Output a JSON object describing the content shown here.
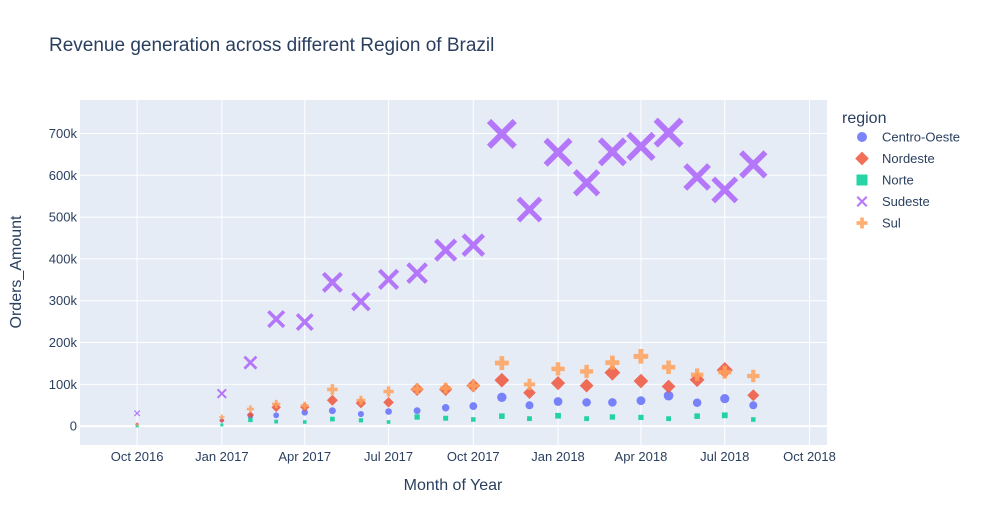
{
  "chart_data": {
    "type": "scatter",
    "title": "Revenue generation across different Region of Brazil",
    "xlabel": "Month of Year",
    "ylabel": "Orders_Amount",
    "x_tick_labels": [
      "Oct 2016",
      "Jan 2017",
      "Apr 2017",
      "Jul 2017",
      "Oct 2017",
      "Jan 2018",
      "Apr 2018",
      "Jul 2018",
      "Oct 2018"
    ],
    "y_tick_labels": [
      "0",
      "100k",
      "200k",
      "300k",
      "400k",
      "500k",
      "600k",
      "700k"
    ],
    "xlim": [
      "2016-07-31",
      "2018-10-20"
    ],
    "ylim": [
      -45000,
      780000
    ],
    "grid": true,
    "legend_title": "region",
    "legend_position": "right",
    "x": [
      "2016-10",
      "2017-01",
      "2017-02",
      "2017-03",
      "2017-04",
      "2017-05",
      "2017-06",
      "2017-07",
      "2017-08",
      "2017-09",
      "2017-10",
      "2017-11",
      "2017-12",
      "2018-01",
      "2018-02",
      "2018-03",
      "2018-04",
      "2018-05",
      "2018-06",
      "2018-07",
      "2018-08"
    ],
    "series": [
      {
        "name": "Centro-Oeste",
        "color": "#636efa",
        "symbol": "circle",
        "values": [
          3000,
          14000,
          25000,
          26000,
          33000,
          37000,
          29000,
          35000,
          37000,
          44000,
          48000,
          69000,
          50000,
          59000,
          57000,
          57000,
          61000,
          73000,
          56000,
          66000,
          50000
        ]
      },
      {
        "name": "Nordeste",
        "color": "#ef553b",
        "symbol": "diamond",
        "values": [
          5000,
          14000,
          27000,
          45000,
          46000,
          62000,
          55000,
          57000,
          88000,
          88000,
          97000,
          110000,
          80000,
          103000,
          97000,
          128000,
          108000,
          95000,
          111000,
          134000,
          74000
        ]
      },
      {
        "name": "Norte",
        "color": "#00cc96",
        "symbol": "square",
        "values": [
          800,
          3000,
          15000,
          11000,
          10000,
          17000,
          14000,
          10000,
          22000,
          19000,
          16000,
          24000,
          18000,
          25000,
          18000,
          22000,
          21000,
          18000,
          24000,
          26000,
          16000
        ]
      },
      {
        "name": "Sudeste",
        "color": "#ab63fa",
        "symbol": "x",
        "values": [
          31000,
          78000,
          152000,
          256000,
          249000,
          344000,
          298000,
          351000,
          366000,
          421000,
          433000,
          699000,
          518000,
          655000,
          582000,
          656000,
          669000,
          702000,
          596000,
          565000,
          626000
        ]
      },
      {
        "name": "Sul",
        "color": "#ffa15a",
        "symbol": "cross",
        "values": [
          3000,
          22000,
          41000,
          53000,
          49000,
          88000,
          62000,
          83000,
          89000,
          91000,
          97000,
          151000,
          100000,
          137000,
          131000,
          152000,
          167000,
          141000,
          123000,
          129000,
          120000
        ]
      }
    ]
  }
}
